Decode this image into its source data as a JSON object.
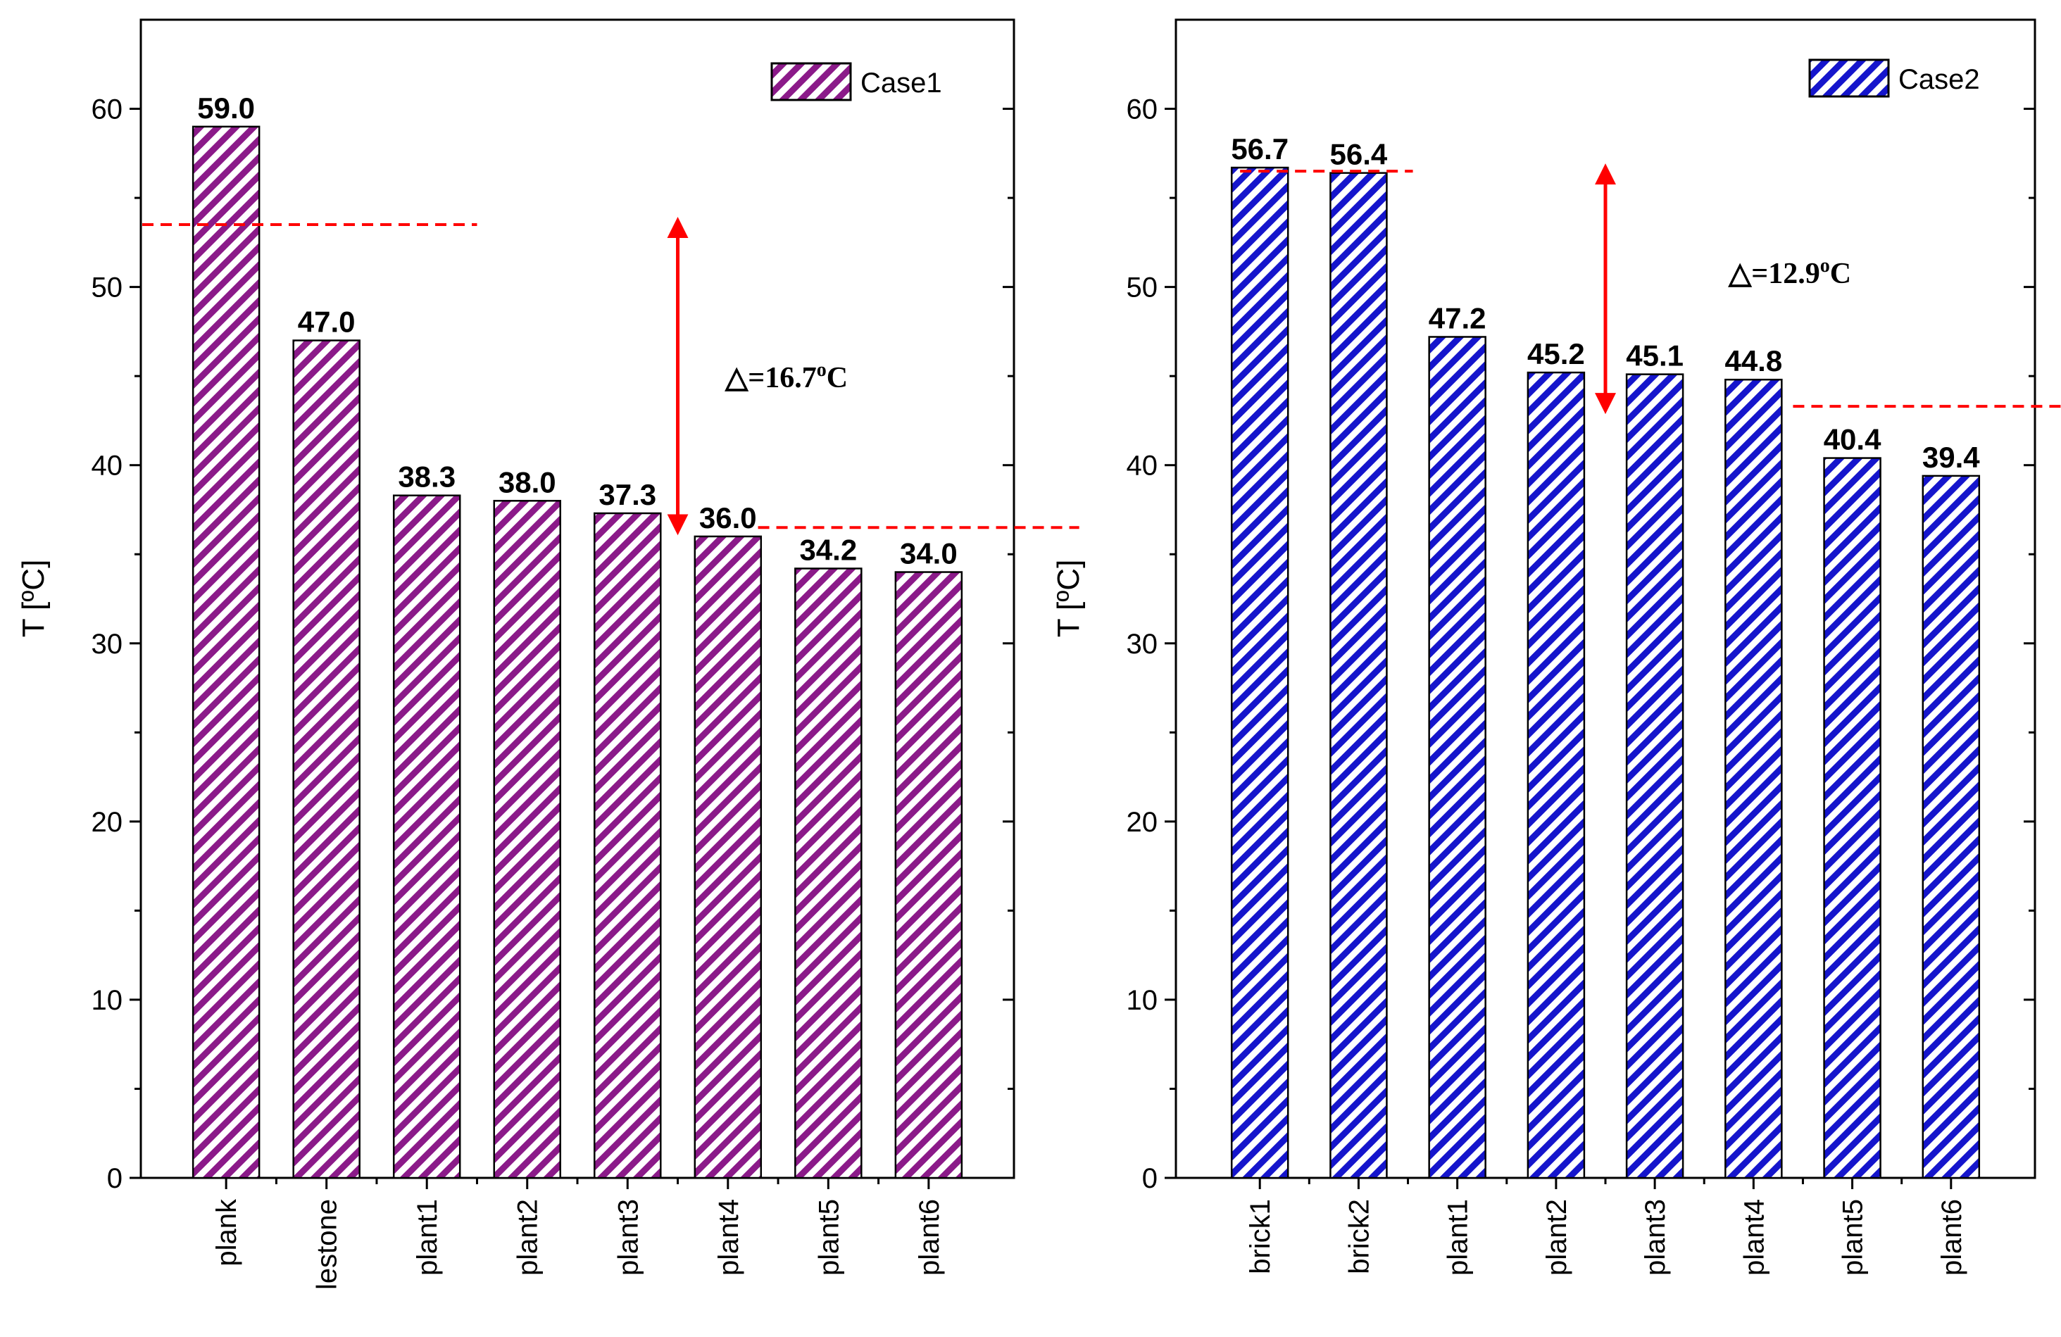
{
  "chart_data": [
    {
      "type": "bar",
      "categories": [
        "plank",
        "lestone",
        "plant1",
        "plant2",
        "plant3",
        "plant4",
        "plant5",
        "plant6"
      ],
      "series": [
        {
          "name": "Case1",
          "values": [
            59.0,
            47.0,
            38.3,
            38.0,
            37.3,
            36.0,
            34.2,
            34.0
          ]
        }
      ],
      "value_labels": [
        "59.0",
        "47.0",
        "38.3",
        "38.0",
        "37.3",
        "36.0",
        "34.2",
        "34.0"
      ],
      "ylabel": "T [ºC]",
      "xlabel": "",
      "ylim": [
        0,
        65
      ],
      "yticks": [
        0,
        10,
        20,
        30,
        40,
        50,
        60
      ],
      "ytick_labels": [
        "0",
        "10",
        "20",
        "30",
        "40",
        "50",
        "60"
      ],
      "color": "#8B1A89",
      "legend": "top-right",
      "reference_lines": [
        53.5,
        36.5
      ],
      "arrow": {
        "from": 36.5,
        "to": 53.5,
        "category_position": 4.5
      },
      "annotation_label": "△=16.7",
      "annotation_unit": "C",
      "annotation_superscript": "o"
    },
    {
      "type": "bar",
      "categories": [
        "brick1",
        "brick2",
        "plant1",
        "plant2",
        "plant3",
        "plant4",
        "plant5",
        "plant6"
      ],
      "series": [
        {
          "name": "Case2",
          "values": [
            56.7,
            56.4,
            47.2,
            45.2,
            45.1,
            44.8,
            40.4,
            39.4
          ]
        }
      ],
      "value_labels": [
        "56.7",
        "56.4",
        "47.2",
        "45.2",
        "45.1",
        "44.8",
        "40.4",
        "39.4"
      ],
      "ylabel": "T [ºC]",
      "xlabel": "",
      "ylim": [
        0,
        65
      ],
      "yticks": [
        0,
        10,
        20,
        30,
        40,
        50,
        60
      ],
      "ytick_labels": [
        "0",
        "10",
        "20",
        "30",
        "40",
        "50",
        "60"
      ],
      "color": "#1515CC",
      "legend": "top-right",
      "reference_lines": [
        56.5,
        43.3
      ],
      "arrow": {
        "from": 43.3,
        "to": 56.5,
        "category_position": 3.5
      },
      "annotation_label": "△=12.9",
      "annotation_unit": "C",
      "annotation_superscript": "o"
    }
  ]
}
